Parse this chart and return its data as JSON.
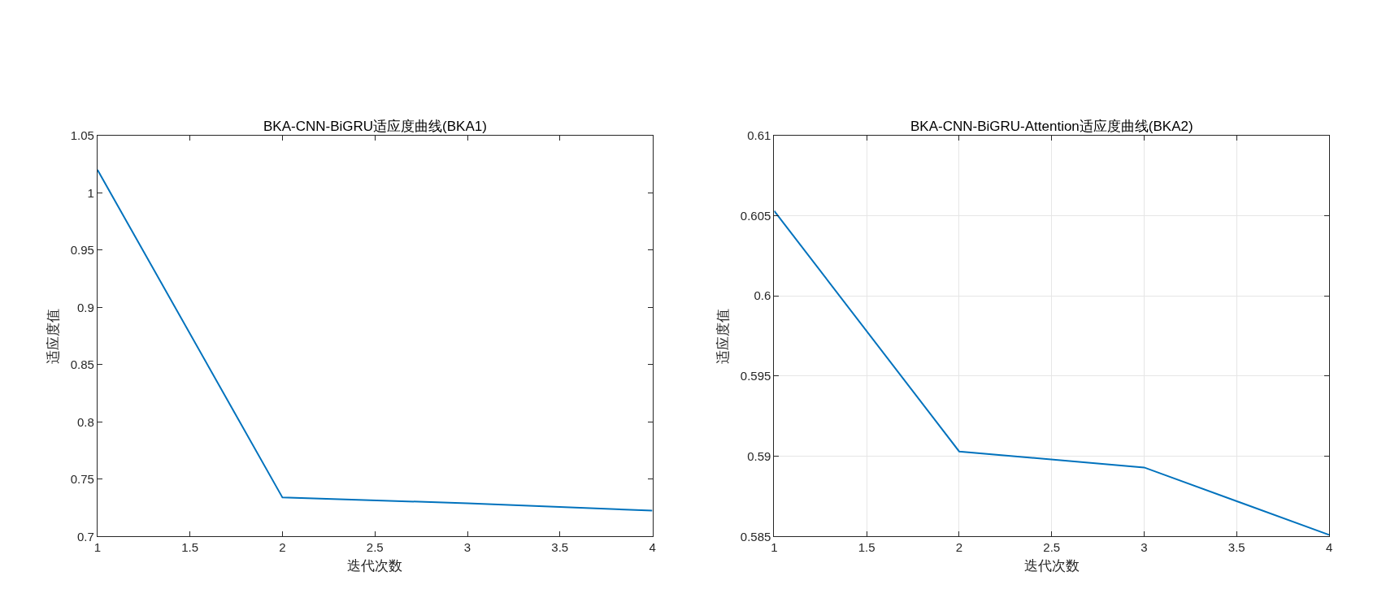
{
  "chart_data": [
    {
      "type": "line",
      "title": "BKA-CNN-BiGRU适应度曲线(BKA1)",
      "xlabel": "迭代次数",
      "ylabel": "适应度值",
      "x": [
        1,
        2,
        3,
        4
      ],
      "series": [
        {
          "color": "#0072bd",
          "values": [
            1.02,
            0.734,
            0.729,
            0.7225
          ]
        }
      ],
      "xlim": [
        1,
        4
      ],
      "xticks": [
        1,
        1.5,
        2,
        2.5,
        3,
        3.5,
        4
      ],
      "ylim": [
        0.7,
        1.05
      ],
      "yticks": [
        0.7,
        0.75,
        0.8,
        0.85,
        0.9,
        0.95,
        1,
        1.05
      ],
      "grid": false,
      "marker": "none",
      "line_style": "solid"
    },
    {
      "type": "line",
      "title": "BKA-CNN-BiGRU-Attention适应度曲线(BKA2)",
      "xlabel": "迭代次数",
      "ylabel": "适应度值",
      "x": [
        1,
        2,
        3,
        4
      ],
      "series": [
        {
          "color": "#0072bd",
          "values": [
            0.6053,
            0.5903,
            0.5893,
            0.5851
          ]
        }
      ],
      "xlim": [
        1,
        4
      ],
      "xticks": [
        1,
        1.5,
        2,
        2.5,
        3,
        3.5,
        4
      ],
      "ylim": [
        0.585,
        0.61
      ],
      "yticks": [
        0.585,
        0.59,
        0.595,
        0.6,
        0.605,
        0.61
      ],
      "grid": true,
      "marker": "none",
      "line_style": "solid"
    }
  ]
}
